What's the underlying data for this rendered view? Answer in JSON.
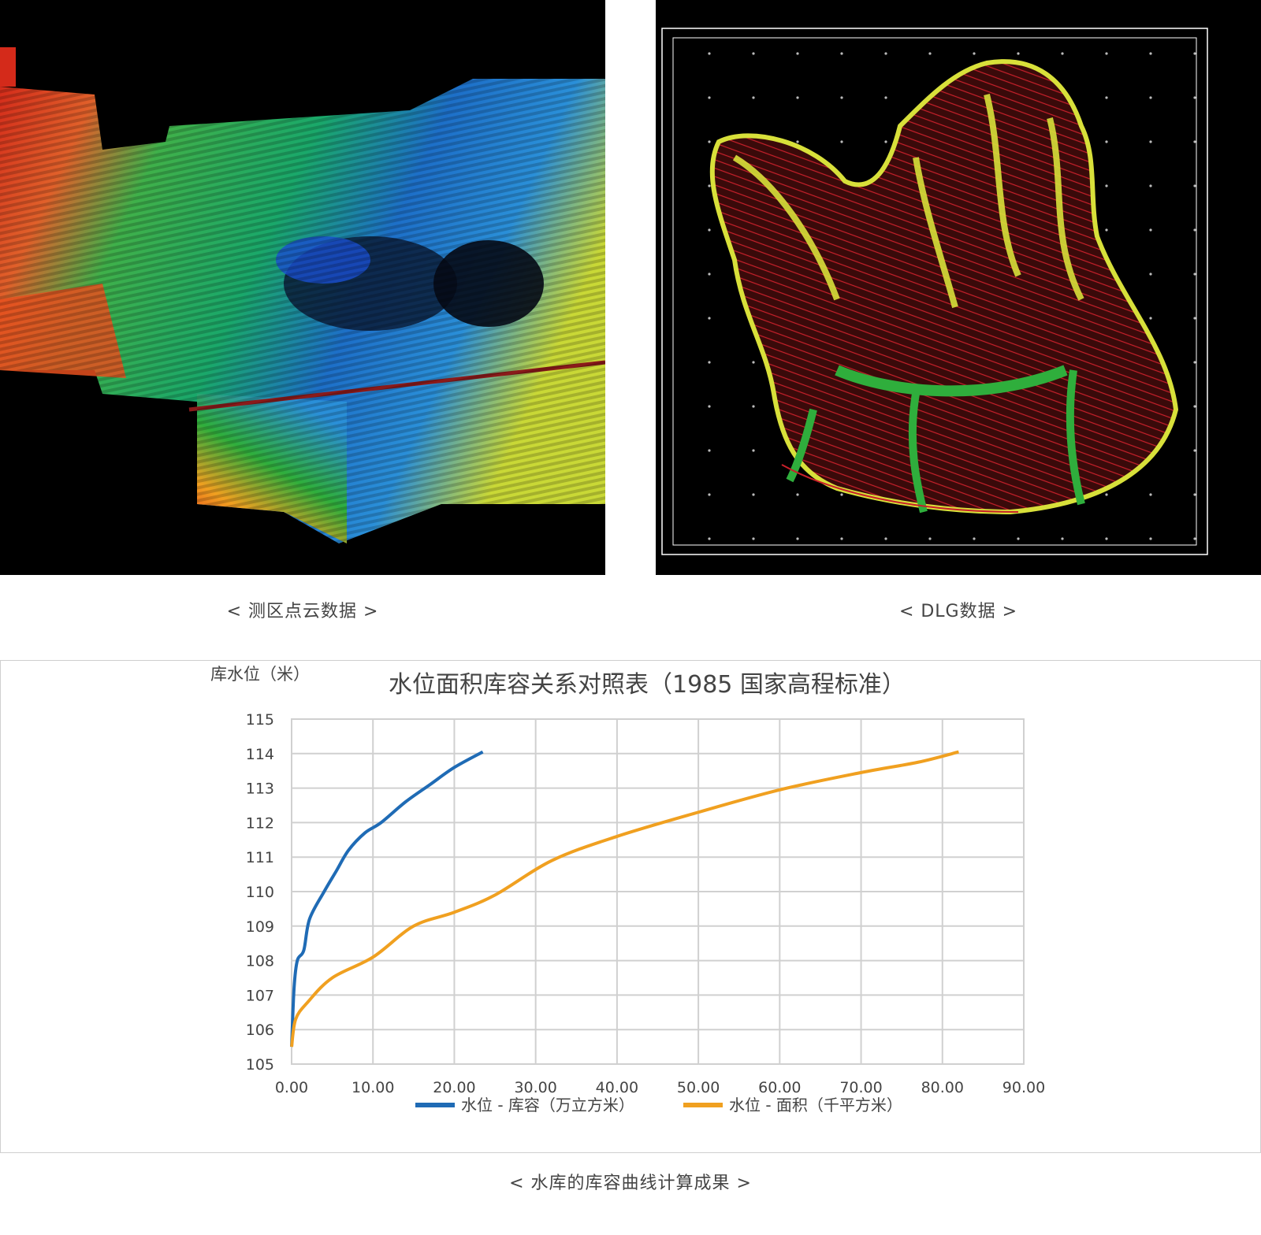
{
  "images": {
    "point_cloud": {
      "caption": "< 测区点云数据 >"
    },
    "dlg": {
      "caption": "< DLG数据 >"
    }
  },
  "bottom_caption": "< 水库的库容曲线计算成果 >",
  "colors": {
    "volume_series": "#1f6bb5",
    "area_series": "#f0a020",
    "grid": "#d0d0d0",
    "background": "#ffffff"
  },
  "chart_data": {
    "type": "line",
    "title": "水位面积库容关系对照表（1985 国家高程标准）",
    "ylabel": "库水位（米）",
    "xlabel": "",
    "xlim": [
      0,
      90
    ],
    "ylim": [
      105,
      115
    ],
    "x_ticks": [
      "0.00",
      "10.00",
      "20.00",
      "30.00",
      "40.00",
      "50.00",
      "60.00",
      "70.00",
      "80.00",
      "90.00"
    ],
    "y_ticks": [
      "105",
      "106",
      "107",
      "108",
      "109",
      "110",
      "111",
      "112",
      "113",
      "114",
      "115"
    ],
    "grid": true,
    "legend_position": "bottom",
    "series": [
      {
        "name": "水位 - 库容（万立方米）",
        "color": "#1f6bb5",
        "points": [
          [
            0,
            105.5
          ],
          [
            0.3,
            107.2
          ],
          [
            0.7,
            108.0
          ],
          [
            1.5,
            108.3
          ],
          [
            2.2,
            109.2
          ],
          [
            4.0,
            110.0
          ],
          [
            5.5,
            110.6
          ],
          [
            7.0,
            111.2
          ],
          [
            9.0,
            111.7
          ],
          [
            11.0,
            112.0
          ],
          [
            14.0,
            112.6
          ],
          [
            17.0,
            113.1
          ],
          [
            20.0,
            113.6
          ],
          [
            23.5,
            114.05
          ]
        ]
      },
      {
        "name": "水位 - 面积（千平方米）",
        "color": "#f0a020",
        "points": [
          [
            0,
            105.5
          ],
          [
            0.5,
            106.3
          ],
          [
            2.0,
            106.8
          ],
          [
            5.0,
            107.5
          ],
          [
            10.0,
            108.1
          ],
          [
            15.0,
            109.0
          ],
          [
            20.0,
            109.4
          ],
          [
            25.0,
            109.9
          ],
          [
            32.0,
            110.9
          ],
          [
            40.0,
            111.6
          ],
          [
            50.0,
            112.3
          ],
          [
            60.0,
            112.95
          ],
          [
            70.0,
            113.45
          ],
          [
            77.0,
            113.75
          ],
          [
            82.0,
            114.05
          ]
        ]
      }
    ]
  }
}
